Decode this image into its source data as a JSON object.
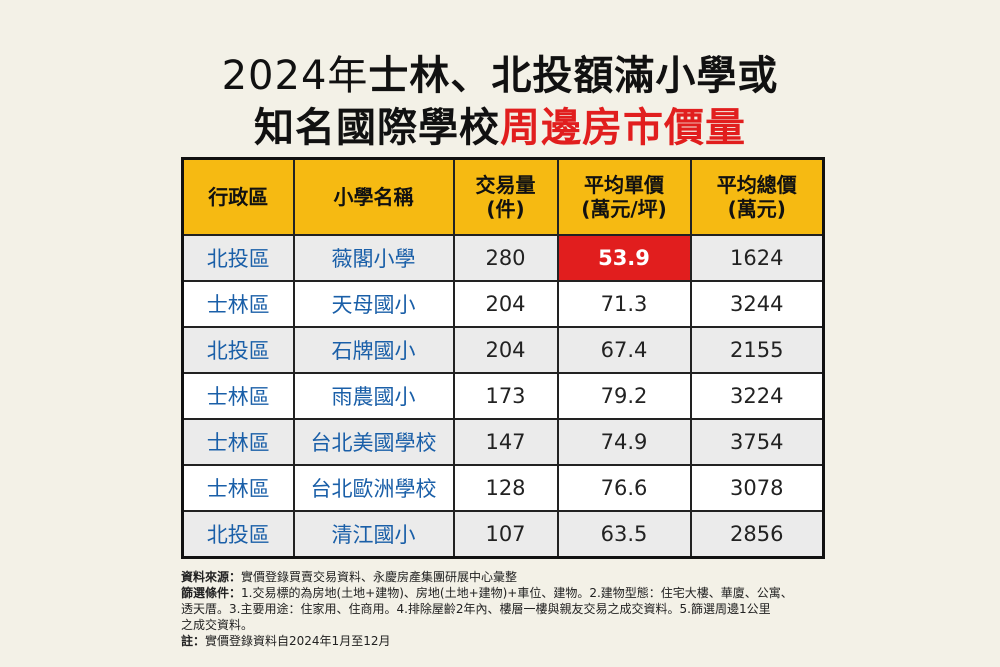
{
  "title": {
    "line1_year": "2024年",
    "line1_rest": "士林、北投額滿小學或",
    "line2_black": "知名國際學校",
    "line2_red": "周邊房市價量"
  },
  "table": {
    "headers": [
      [
        "行政區"
      ],
      [
        "小學名稱"
      ],
      [
        "交易量",
        "(件)"
      ],
      [
        "平均單價",
        "(萬元/坪)"
      ],
      [
        "平均總價",
        "(萬元)"
      ]
    ],
    "highlight_color": "#e11e1e",
    "header_color": "#f6ba12"
  },
  "chart_data": {
    "type": "table",
    "columns": [
      "行政區",
      "小學名稱",
      "交易量(件)",
      "平均單價(萬元/坪)",
      "平均總價(萬元)"
    ],
    "rows": [
      [
        "北投區",
        "薇閣小學",
        "280",
        "53.9",
        "1624"
      ],
      [
        "士林區",
        "天母國小",
        "204",
        "71.3",
        "3244"
      ],
      [
        "北投區",
        "石牌國小",
        "204",
        "67.4",
        "2155"
      ],
      [
        "士林區",
        "雨農國小",
        "173",
        "79.2",
        "3224"
      ],
      [
        "士林區",
        "台北美國學校",
        "147",
        "74.9",
        "3754"
      ],
      [
        "士林區",
        "台北歐洲學校",
        "128",
        "76.6",
        "3078"
      ],
      [
        "北投區",
        "清江國小",
        "107",
        "63.5",
        "2856"
      ]
    ],
    "highlighted_cell": {
      "row": 0,
      "column": 3
    }
  },
  "notes": {
    "source_label": "資料來源：",
    "source_text": "實價登錄買賣交易資料、永慶房產集團研展中心彙整",
    "criteria_label": "篩選條件：",
    "criteria_line1": "1.交易標的為房地(土地+建物)、房地(土地+建物)+車位、建物。2.建物型態：住宅大樓、華廈、公寓、",
    "criteria_line2": "透天厝。3.主要用途：住家用、住商用。4.排除屋齡2年內、樓層一樓與親友交易之成交資料。5.篩選周邊1公里",
    "criteria_line3": "之成交資料。",
    "note_label": "註：",
    "note_text": "實價登錄資料自2024年1月至12月"
  }
}
